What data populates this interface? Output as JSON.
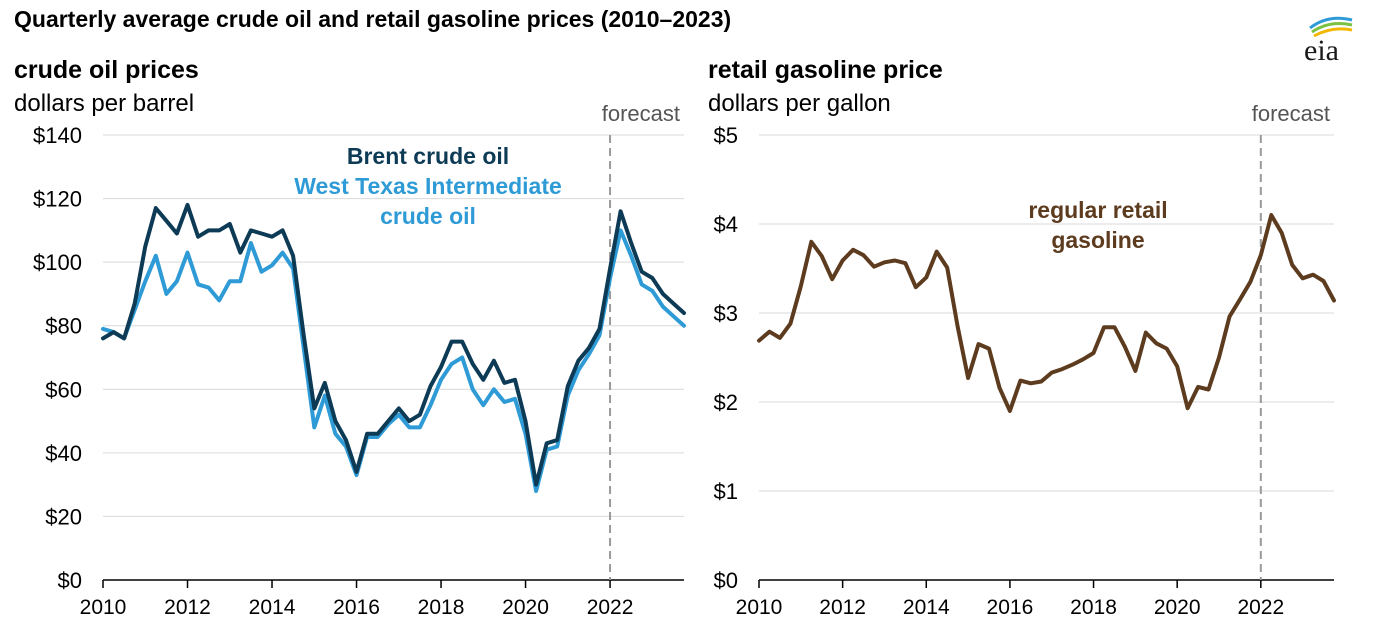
{
  "title": "Quarterly average crude oil and retail gasoline prices (2010–2023)",
  "logo_text": "eia",
  "colors": {
    "brent": "#0d3a55",
    "wti": "#2e9bd6",
    "gasoline": "#5c3b1e",
    "grid": "#d9d9d9",
    "forecast": "#9a9a9a"
  },
  "chart_data": [
    {
      "type": "line",
      "title": "crude oil prices",
      "subtitle": "dollars per barrel",
      "xlabel": "",
      "ylabel": "",
      "x_ticks": [
        "2010",
        "2012",
        "2014",
        "2016",
        "2018",
        "2020",
        "2022"
      ],
      "y_ticks": [
        "$140",
        "$120",
        "$100",
        "$80",
        "$60",
        "$40",
        "$20",
        "$0"
      ],
      "ylim": [
        0,
        140
      ],
      "xlim": [
        2010.0,
        2023.75
      ],
      "grid": true,
      "forecast_label": "forecast",
      "forecast_start": 2022.0,
      "x": [
        2010.0,
        2010.25,
        2010.5,
        2010.75,
        2011.0,
        2011.25,
        2011.5,
        2011.75,
        2012.0,
        2012.25,
        2012.5,
        2012.75,
        2013.0,
        2013.25,
        2013.5,
        2013.75,
        2014.0,
        2014.25,
        2014.5,
        2014.75,
        2015.0,
        2015.25,
        2015.5,
        2015.75,
        2016.0,
        2016.25,
        2016.5,
        2016.75,
        2017.0,
        2017.25,
        2017.5,
        2017.75,
        2018.0,
        2018.25,
        2018.5,
        2018.75,
        2019.0,
        2019.25,
        2019.5,
        2019.75,
        2020.0,
        2020.25,
        2020.5,
        2020.75,
        2021.0,
        2021.25,
        2021.5,
        2021.75,
        2022.0,
        2022.25,
        2022.5,
        2022.75,
        2023.0,
        2023.25,
        2023.5,
        2023.75
      ],
      "series": [
        {
          "name": "Brent crude oil",
          "values": [
            76,
            78,
            76,
            87,
            105,
            117,
            113,
            109,
            118,
            108,
            110,
            110,
            112,
            103,
            110,
            109,
            108,
            110,
            102,
            77,
            54,
            62,
            50,
            44,
            34,
            46,
            46,
            50,
            54,
            50,
            52,
            61,
            67,
            75,
            75,
            68,
            63,
            69,
            62,
            63,
            50,
            30,
            43,
            44,
            61,
            69,
            73,
            79,
            98,
            116,
            106,
            97,
            95,
            90,
            87,
            84
          ]
        },
        {
          "name": "West Texas Intermediate crude oil",
          "values": [
            79,
            78,
            76,
            85,
            94,
            102,
            90,
            94,
            103,
            93,
            92,
            88,
            94,
            94,
            106,
            97,
            99,
            103,
            98,
            73,
            48,
            58,
            46,
            42,
            33,
            45,
            45,
            49,
            52,
            48,
            48,
            55,
            63,
            68,
            70,
            60,
            55,
            60,
            56,
            57,
            46,
            28,
            41,
            42,
            58,
            66,
            71,
            77,
            95,
            110,
            102,
            93,
            91,
            86,
            83,
            80
          ]
        }
      ]
    },
    {
      "type": "line",
      "title": "retail gasoline price",
      "subtitle": "dollars per gallon",
      "xlabel": "",
      "ylabel": "",
      "x_ticks": [
        "2010",
        "2012",
        "2014",
        "2016",
        "2018",
        "2020",
        "2022"
      ],
      "y_ticks": [
        "$5",
        "$4",
        "$3",
        "$2",
        "$1",
        "$0"
      ],
      "ylim": [
        0,
        5
      ],
      "xlim": [
        2010.0,
        2023.75
      ],
      "grid": true,
      "forecast_label": "forecast",
      "forecast_start": 2022.0,
      "x": [
        2010.0,
        2010.25,
        2010.5,
        2010.75,
        2011.0,
        2011.25,
        2011.5,
        2011.75,
        2012.0,
        2012.25,
        2012.5,
        2012.75,
        2013.0,
        2013.25,
        2013.5,
        2013.75,
        2014.0,
        2014.25,
        2014.5,
        2014.75,
        2015.0,
        2015.25,
        2015.5,
        2015.75,
        2016.0,
        2016.25,
        2016.5,
        2016.75,
        2017.0,
        2017.25,
        2017.5,
        2017.75,
        2018.0,
        2018.25,
        2018.5,
        2018.75,
        2019.0,
        2019.25,
        2019.5,
        2019.75,
        2020.0,
        2020.25,
        2020.5,
        2020.75,
        2021.0,
        2021.25,
        2021.5,
        2021.75,
        2022.0,
        2022.25,
        2022.5,
        2022.75,
        2023.0,
        2023.25,
        2023.5,
        2023.75
      ],
      "series": [
        {
          "name": "regular retail gasoline",
          "values": [
            2.69,
            2.79,
            2.72,
            2.88,
            3.3,
            3.8,
            3.64,
            3.38,
            3.59,
            3.71,
            3.65,
            3.52,
            3.57,
            3.59,
            3.56,
            3.29,
            3.4,
            3.69,
            3.51,
            2.85,
            2.27,
            2.65,
            2.6,
            2.16,
            1.9,
            2.24,
            2.21,
            2.23,
            2.33,
            2.37,
            2.42,
            2.48,
            2.55,
            2.84,
            2.84,
            2.62,
            2.35,
            2.78,
            2.66,
            2.6,
            2.4,
            1.93,
            2.17,
            2.14,
            2.5,
            2.96,
            3.15,
            3.35,
            3.65,
            4.1,
            3.9,
            3.54,
            3.39,
            3.43,
            3.36,
            3.14
          ]
        }
      ]
    }
  ],
  "annotations": {
    "brent_label": "Brent crude oil",
    "wti_label_line1": "West Texas Intermediate",
    "wti_label_line2": "crude oil",
    "gas_label_line1": "regular retail",
    "gas_label_line2": "gasoline"
  }
}
